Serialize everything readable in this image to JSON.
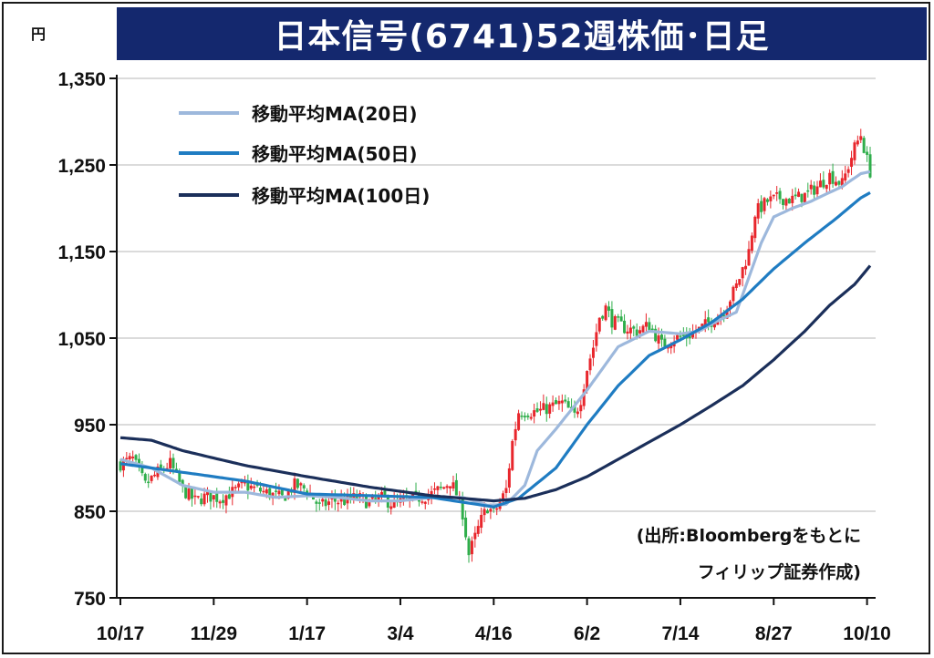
{
  "title": "日本信号(6741)52週株価･日足",
  "unit": "円",
  "source_lines": [
    "(出所:Bloombergをもとに",
    "フィリップ証券作成)"
  ],
  "colors": {
    "title_bg": "#14286e",
    "up": "#e8262c",
    "down": "#2fae4b",
    "ma20": "#9db8dc",
    "ma50": "#1f7cc2",
    "ma100": "#1b2f5a"
  },
  "chart_data": {
    "type": "line",
    "title": "日本信号(6741)52週株価･日足",
    "xlabel": "",
    "ylabel": "円",
    "ylim": [
      750,
      1350
    ],
    "y_ticks": [
      750,
      850,
      950,
      1050,
      1150,
      1250,
      1350
    ],
    "y_tick_labels": [
      "750",
      "850",
      "950",
      "1,050",
      "1,150",
      "1,250",
      "1,350"
    ],
    "x_tick_labels": [
      "10/17",
      "11/29",
      "1/17",
      "3/4",
      "4/16",
      "6/2",
      "7/14",
      "8/27",
      "10/10"
    ],
    "x_tick_index": [
      0,
      30,
      60,
      90,
      120,
      150,
      180,
      210,
      240
    ],
    "n_days": 242,
    "grid": true,
    "legend_position": "top-left",
    "candles_close_keyframes": [
      [
        0,
        905
      ],
      [
        4,
        910
      ],
      [
        8,
        880
      ],
      [
        12,
        895
      ],
      [
        16,
        905
      ],
      [
        20,
        875
      ],
      [
        24,
        862
      ],
      [
        28,
        868
      ],
      [
        32,
        865
      ],
      [
        36,
        872
      ],
      [
        40,
        880
      ],
      [
        44,
        875
      ],
      [
        48,
        870
      ],
      [
        52,
        865
      ],
      [
        56,
        880
      ],
      [
        60,
        875
      ],
      [
        64,
        855
      ],
      [
        68,
        862
      ],
      [
        72,
        862
      ],
      [
        76,
        866
      ],
      [
        80,
        860
      ],
      [
        84,
        865
      ],
      [
        88,
        858
      ],
      [
        92,
        862
      ],
      [
        96,
        866
      ],
      [
        100,
        870
      ],
      [
        104,
        878
      ],
      [
        106,
        885
      ],
      [
        108,
        870
      ],
      [
        110,
        848
      ],
      [
        112,
        800
      ],
      [
        114,
        820
      ],
      [
        116,
        840
      ],
      [
        118,
        855
      ],
      [
        120,
        848
      ],
      [
        122,
        860
      ],
      [
        124,
        875
      ],
      [
        126,
        930
      ],
      [
        128,
        965
      ],
      [
        134,
        965
      ],
      [
        138,
        970
      ],
      [
        142,
        975
      ],
      [
        146,
        960
      ],
      [
        148,
        980
      ],
      [
        150,
        1015
      ],
      [
        152,
        1040
      ],
      [
        154,
        1075
      ],
      [
        156,
        1085
      ],
      [
        158,
        1070
      ],
      [
        162,
        1062
      ],
      [
        166,
        1058
      ],
      [
        170,
        1065
      ],
      [
        174,
        1042
      ],
      [
        178,
        1050
      ],
      [
        182,
        1052
      ],
      [
        186,
        1060
      ],
      [
        190,
        1070
      ],
      [
        194,
        1082
      ],
      [
        198,
        1110
      ],
      [
        202,
        1150
      ],
      [
        204,
        1195
      ],
      [
        208,
        1208
      ],
      [
        212,
        1212
      ],
      [
        216,
        1210
      ],
      [
        220,
        1215
      ],
      [
        224,
        1225
      ],
      [
        228,
        1238
      ],
      [
        232,
        1228
      ],
      [
        236,
        1270
      ],
      [
        238,
        1285
      ],
      [
        240,
        1255
      ],
      [
        242,
        1230
      ]
    ],
    "series": [
      {
        "name": "移動平均MA(20日)",
        "keyframes": [
          [
            0,
            910
          ],
          [
            10,
            900
          ],
          [
            20,
            880
          ],
          [
            30,
            872
          ],
          [
            40,
            872
          ],
          [
            50,
            866
          ],
          [
            60,
            868
          ],
          [
            70,
            866
          ],
          [
            80,
            862
          ],
          [
            90,
            862
          ],
          [
            100,
            866
          ],
          [
            110,
            866
          ],
          [
            118,
            857
          ],
          [
            124,
            858
          ],
          [
            130,
            880
          ],
          [
            134,
            920
          ],
          [
            140,
            945
          ],
          [
            150,
            990
          ],
          [
            160,
            1040
          ],
          [
            170,
            1058
          ],
          [
            180,
            1055
          ],
          [
            186,
            1058
          ],
          [
            192,
            1070
          ],
          [
            198,
            1080
          ],
          [
            202,
            1120
          ],
          [
            206,
            1160
          ],
          [
            210,
            1190
          ],
          [
            216,
            1200
          ],
          [
            222,
            1208
          ],
          [
            226,
            1215
          ],
          [
            232,
            1225
          ],
          [
            238,
            1240
          ],
          [
            242,
            1243
          ]
        ]
      },
      {
        "name": "移動平均MA(50日)",
        "keyframes": [
          [
            0,
            905
          ],
          [
            20,
            895
          ],
          [
            40,
            885
          ],
          [
            60,
            870
          ],
          [
            80,
            868
          ],
          [
            100,
            866
          ],
          [
            120,
            855
          ],
          [
            128,
            865
          ],
          [
            140,
            900
          ],
          [
            150,
            950
          ],
          [
            160,
            995
          ],
          [
            170,
            1030
          ],
          [
            180,
            1048
          ],
          [
            190,
            1068
          ],
          [
            200,
            1095
          ],
          [
            210,
            1130
          ],
          [
            220,
            1160
          ],
          [
            230,
            1188
          ],
          [
            238,
            1212
          ],
          [
            242,
            1220
          ]
        ]
      },
      {
        "name": "移動平均MA(100日)",
        "keyframes": [
          [
            0,
            935
          ],
          [
            10,
            932
          ],
          [
            20,
            920
          ],
          [
            40,
            903
          ],
          [
            60,
            890
          ],
          [
            80,
            878
          ],
          [
            100,
            868
          ],
          [
            120,
            862
          ],
          [
            130,
            865
          ],
          [
            140,
            875
          ],
          [
            150,
            890
          ],
          [
            160,
            910
          ],
          [
            170,
            930
          ],
          [
            180,
            950
          ],
          [
            190,
            972
          ],
          [
            200,
            995
          ],
          [
            210,
            1025
          ],
          [
            220,
            1058
          ],
          [
            228,
            1088
          ],
          [
            236,
            1112
          ],
          [
            242,
            1138
          ]
        ]
      }
    ]
  }
}
